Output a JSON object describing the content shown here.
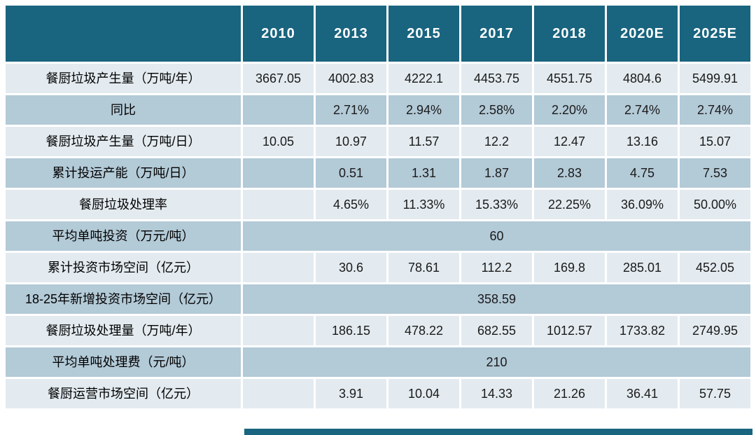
{
  "theme": {
    "header_bg": "#19647f",
    "header_text": "#ffffff",
    "row_light": "#e3ebf0",
    "row_dark": "#b3cad7",
    "body_text": "#1a1a1a"
  },
  "chart_data": {
    "type": "table",
    "title": "",
    "columns": [
      "",
      "2010",
      "2013",
      "2015",
      "2017",
      "2018",
      "2020E",
      "2025E"
    ],
    "rows": [
      {
        "label": "餐厨垃圾产生量（万吨/年）",
        "values": [
          "3667.05",
          "4002.83",
          "4222.1",
          "4453.75",
          "4551.75",
          "4804.6",
          "5499.91"
        ]
      },
      {
        "label": "同比",
        "values": [
          "",
          "2.71%",
          "2.94%",
          "2.58%",
          "2.20%",
          "2.74%",
          "2.74%"
        ]
      },
      {
        "label": "餐厨垃圾产生量（万吨/日）",
        "values": [
          "10.05",
          "10.97",
          "11.57",
          "12.2",
          "12.47",
          "13.16",
          "15.07"
        ]
      },
      {
        "label": "累计投运产能（万吨/日）",
        "values": [
          "",
          "0.51",
          "1.31",
          "1.87",
          "2.83",
          "4.75",
          "7.53"
        ]
      },
      {
        "label": "餐厨垃圾处理率",
        "values": [
          "",
          "4.65%",
          "11.33%",
          "15.33%",
          "22.25%",
          "36.09%",
          "50.00%"
        ]
      },
      {
        "label": "平均单吨投资（万元/吨）",
        "merged": "60"
      },
      {
        "label": "累计投资市场空间（亿元）",
        "values": [
          "",
          "30.6",
          "78.61",
          "112.2",
          "169.8",
          "285.01",
          "452.05"
        ]
      },
      {
        "label": "18-25年新增投资市场空间（亿元）",
        "merged": "358.59"
      },
      {
        "label": "餐厨垃圾处理量（万吨/年）",
        "values": [
          "",
          "186.15",
          "478.22",
          "682.55",
          "1012.57",
          "1733.82",
          "2749.95"
        ]
      },
      {
        "label": "平均单吨处理费（元/吨）",
        "merged": "210"
      },
      {
        "label": "餐厨运营市场空间（亿元）",
        "values": [
          "",
          "3.91",
          "10.04",
          "14.33",
          "21.26",
          "36.41",
          "57.75"
        ]
      }
    ]
  }
}
